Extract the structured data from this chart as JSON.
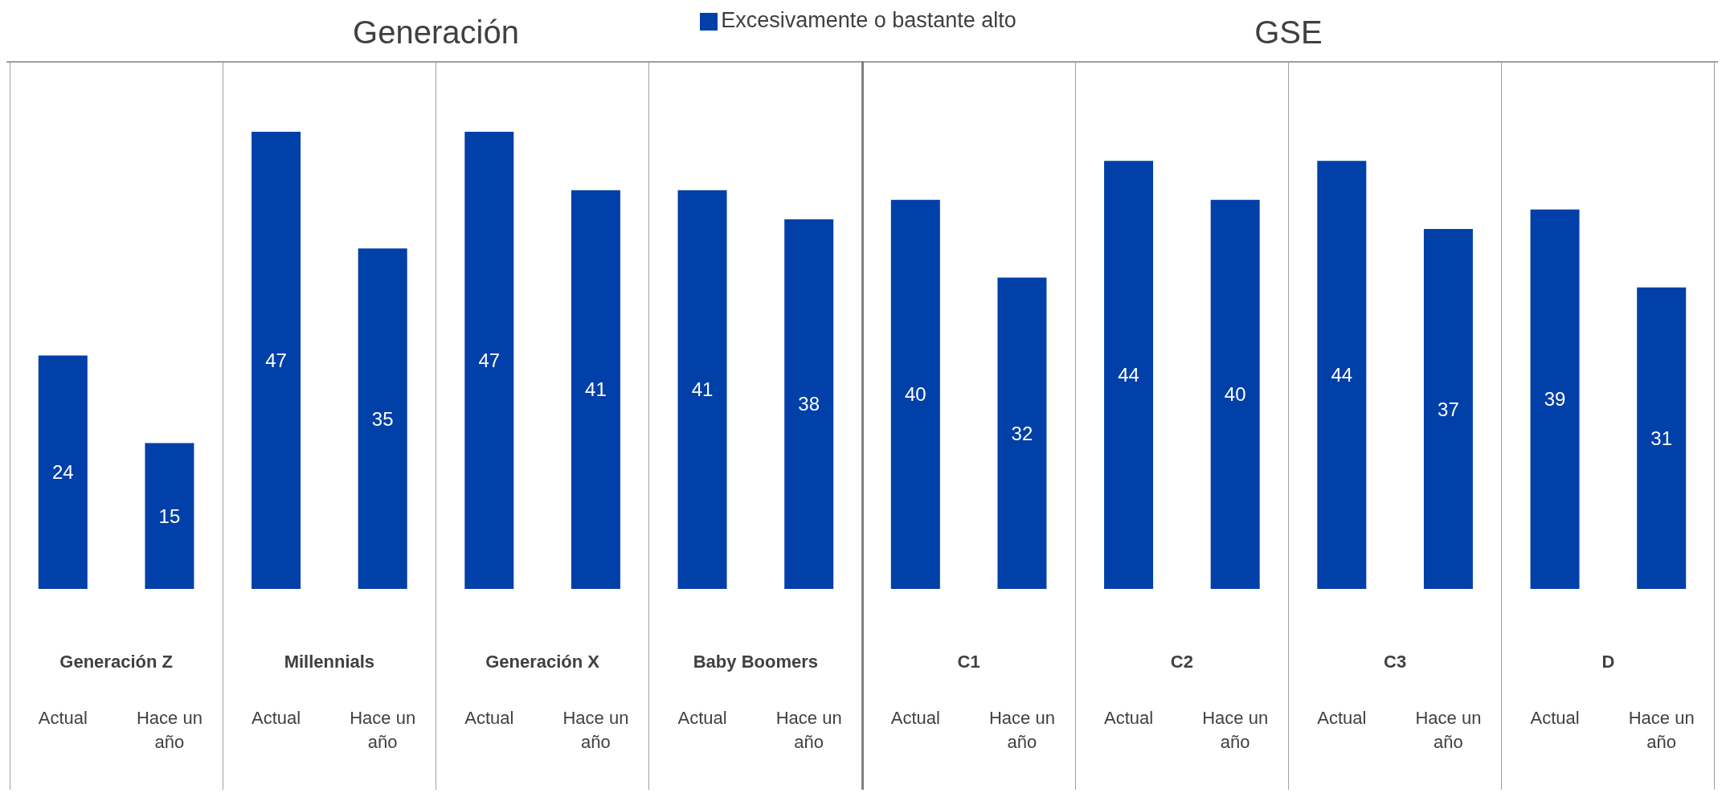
{
  "chart_data": {
    "type": "bar",
    "categories": [
      "Actual",
      "Hace un año",
      "Actual",
      "Hace un año",
      "Actual",
      "Hace un año",
      "Actual",
      "Hace un año",
      "Actual",
      "Hace un año",
      "Actual",
      "Hace un año",
      "Actual",
      "Hace un año",
      "Actual",
      "Hace un año"
    ],
    "series": [
      {
        "name": "Excesivamente o bastante alto",
        "color": "#0040a8",
        "values": [
          24,
          15,
          47,
          35,
          47,
          41,
          41,
          38,
          40,
          32,
          44,
          40,
          44,
          37,
          39,
          31
        ]
      }
    ],
    "data_labels": true,
    "legend": "top",
    "grid": false,
    "annotations": [
      "Generación",
      "GSE",
      "Generación Z",
      "Millennials",
      "Generación X",
      "Baby Boomers",
      "C1",
      "C2",
      "C3",
      "D"
    ]
  }
}
